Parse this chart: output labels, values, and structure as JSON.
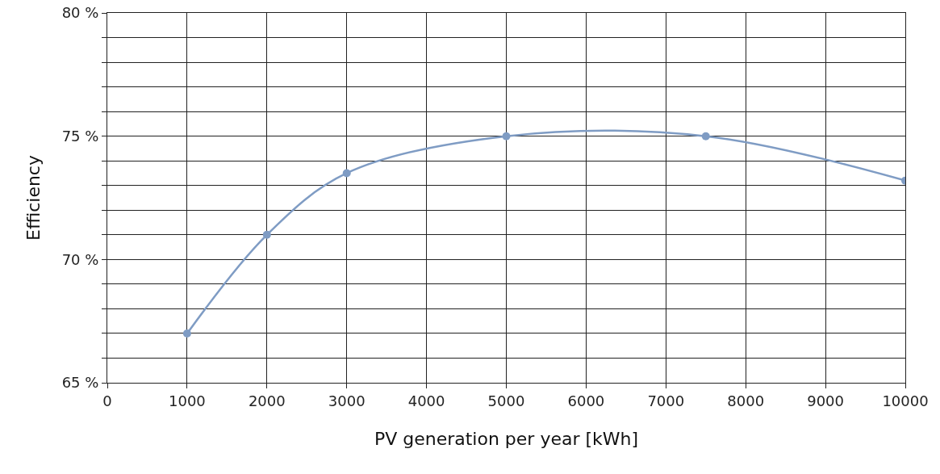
{
  "chart_data": {
    "type": "line",
    "xlabel": "PV generation per year [kWh]",
    "ylabel": "Efficiency",
    "x": [
      1000,
      2000,
      3000,
      5000,
      7500,
      10000
    ],
    "series": [
      {
        "color": "#7f9cc4",
        "values": [
          67,
          71,
          73.5,
          75,
          75,
          73.2
        ]
      }
    ],
    "xlim": [
      0,
      10000
    ],
    "xticks": [
      0,
      1000,
      2000,
      3000,
      4000,
      5000,
      6000,
      7000,
      8000,
      9000,
      10000
    ],
    "ylim": [
      65,
      80
    ],
    "yticks": [
      {
        "value": 65,
        "label": "65 %"
      },
      {
        "value": 66,
        "label": null
      },
      {
        "value": 67,
        "label": null
      },
      {
        "value": 68,
        "label": null
      },
      {
        "value": 69,
        "label": null
      },
      {
        "value": 70,
        "label": "70 %"
      },
      {
        "value": 71,
        "label": null
      },
      {
        "value": 72,
        "label": null
      },
      {
        "value": 73,
        "label": null
      },
      {
        "value": 74,
        "label": null
      },
      {
        "value": 75,
        "label": "75 %"
      },
      {
        "value": 76,
        "label": null
      },
      {
        "value": 77,
        "label": null
      },
      {
        "value": 78,
        "label": null
      },
      {
        "value": 79,
        "label": null
      },
      {
        "value": 80,
        "label": "80 %"
      }
    ],
    "grid": true,
    "marker": "circle",
    "line_style": "solid"
  }
}
